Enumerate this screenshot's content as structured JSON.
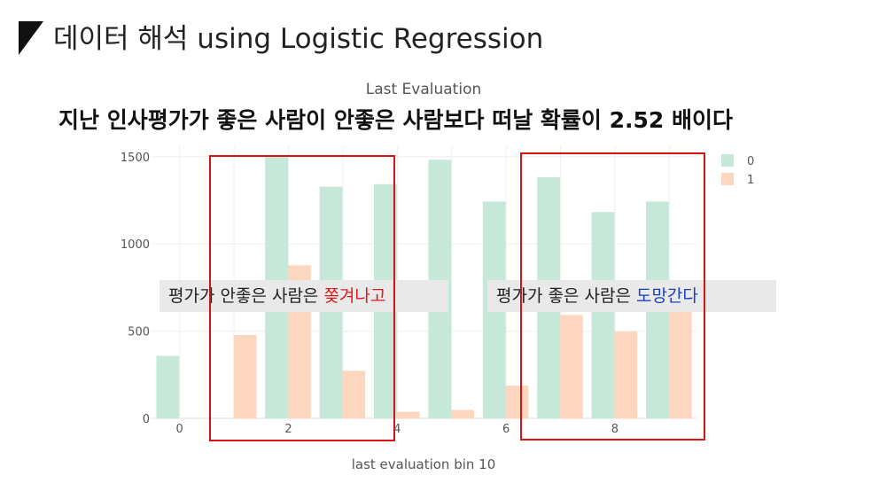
{
  "slide": {
    "title": "데이터 해석 using Logistic Regression",
    "headline": "지난 인사평가가 좋은 사람이 안좋은 사람보다  떠날 확률이 2.52 배이다",
    "marker_color": "#111111"
  },
  "callouts": {
    "left_prefix": "평가가 안좋은 사람은 ",
    "left_highlight": "쫒겨나고",
    "right_prefix": "평가가 좋은 사람은 ",
    "right_highlight": "도망간다",
    "left_highlight_color": "#d81b1b",
    "right_highlight_color": "#1a3fbf"
  },
  "chart_data": {
    "type": "bar",
    "title": "Last Evaluation",
    "xlabel": "last evaluation bin 10",
    "ylabel": "",
    "categories": [
      0,
      1,
      2,
      3,
      4,
      5,
      6,
      7,
      8,
      9
    ],
    "x_tick_labels": [
      "0",
      "2",
      "4",
      "6",
      "8"
    ],
    "x_tick_values": [
      0,
      2,
      4,
      6,
      8
    ],
    "y_ticks": [
      0,
      500,
      1000,
      1500
    ],
    "ylim": [
      0,
      1560
    ],
    "grid": true,
    "legend_position": "top-right",
    "series": [
      {
        "name": "0",
        "color": "#c5e8d8",
        "values": [
          355,
          0,
          1500,
          1325,
          1340,
          1480,
          1240,
          1380,
          1180,
          1240
        ]
      },
      {
        "name": "1",
        "color": "#fdd6c0",
        "values": [
          0,
          475,
          875,
          270,
          35,
          45,
          185,
          590,
          495,
          620
        ]
      }
    ]
  }
}
